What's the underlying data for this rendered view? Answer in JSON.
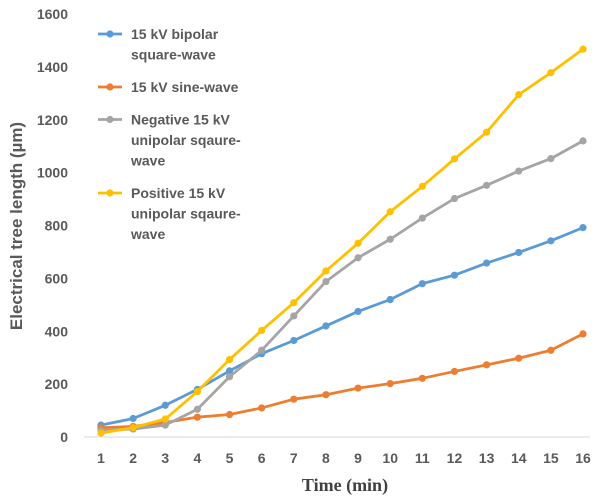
{
  "chart_data": {
    "type": "line",
    "title": "",
    "xlabel": "Time (min)",
    "ylabel": "Electrical tree length (µm)",
    "x": [
      1,
      2,
      3,
      4,
      5,
      6,
      7,
      8,
      9,
      10,
      11,
      12,
      13,
      14,
      15,
      16
    ],
    "xlim": [
      1,
      16
    ],
    "ylim": [
      0,
      1600
    ],
    "yticks": [
      0,
      200,
      400,
      600,
      800,
      1000,
      1200,
      1400,
      1600
    ],
    "grid": false,
    "legend_position": "top-left",
    "series": [
      {
        "name": "15 kV bipolar square-wave",
        "legend_lines": [
          "15 kV bipolar",
          "square-wave"
        ],
        "color": "#5B9BD5",
        "values": [
          45,
          70,
          120,
          180,
          250,
          315,
          365,
          420,
          475,
          520,
          580,
          612,
          658,
          698,
          742,
          792
        ]
      },
      {
        "name": "15 kV sine-wave",
        "legend_lines": [
          "15 kV sine-wave"
        ],
        "color": "#ED7D31",
        "values": [
          35,
          40,
          55,
          75,
          85,
          110,
          143,
          160,
          185,
          202,
          222,
          248,
          273,
          298,
          328,
          390
        ]
      },
      {
        "name": "Negative 15 kV unipolar sqaure-wave",
        "legend_lines": [
          "Negative 15 kV",
          "unipolar sqaure-",
          "wave"
        ],
        "color": "#A5A5A5",
        "values": [
          25,
          30,
          45,
          105,
          228,
          328,
          458,
          588,
          678,
          748,
          828,
          902,
          952,
          1006,
          1053,
          1120
        ]
      },
      {
        "name": "Positive 15 kV unipolar sqaure-wave",
        "legend_lines": [
          "Positive 15 kV",
          "unipolar sqaure-",
          "wave"
        ],
        "color": "#FFC000",
        "values": [
          15,
          35,
          68,
          172,
          293,
          403,
          508,
          628,
          733,
          852,
          948,
          1052,
          1153,
          1295,
          1378,
          1467
        ]
      }
    ]
  }
}
